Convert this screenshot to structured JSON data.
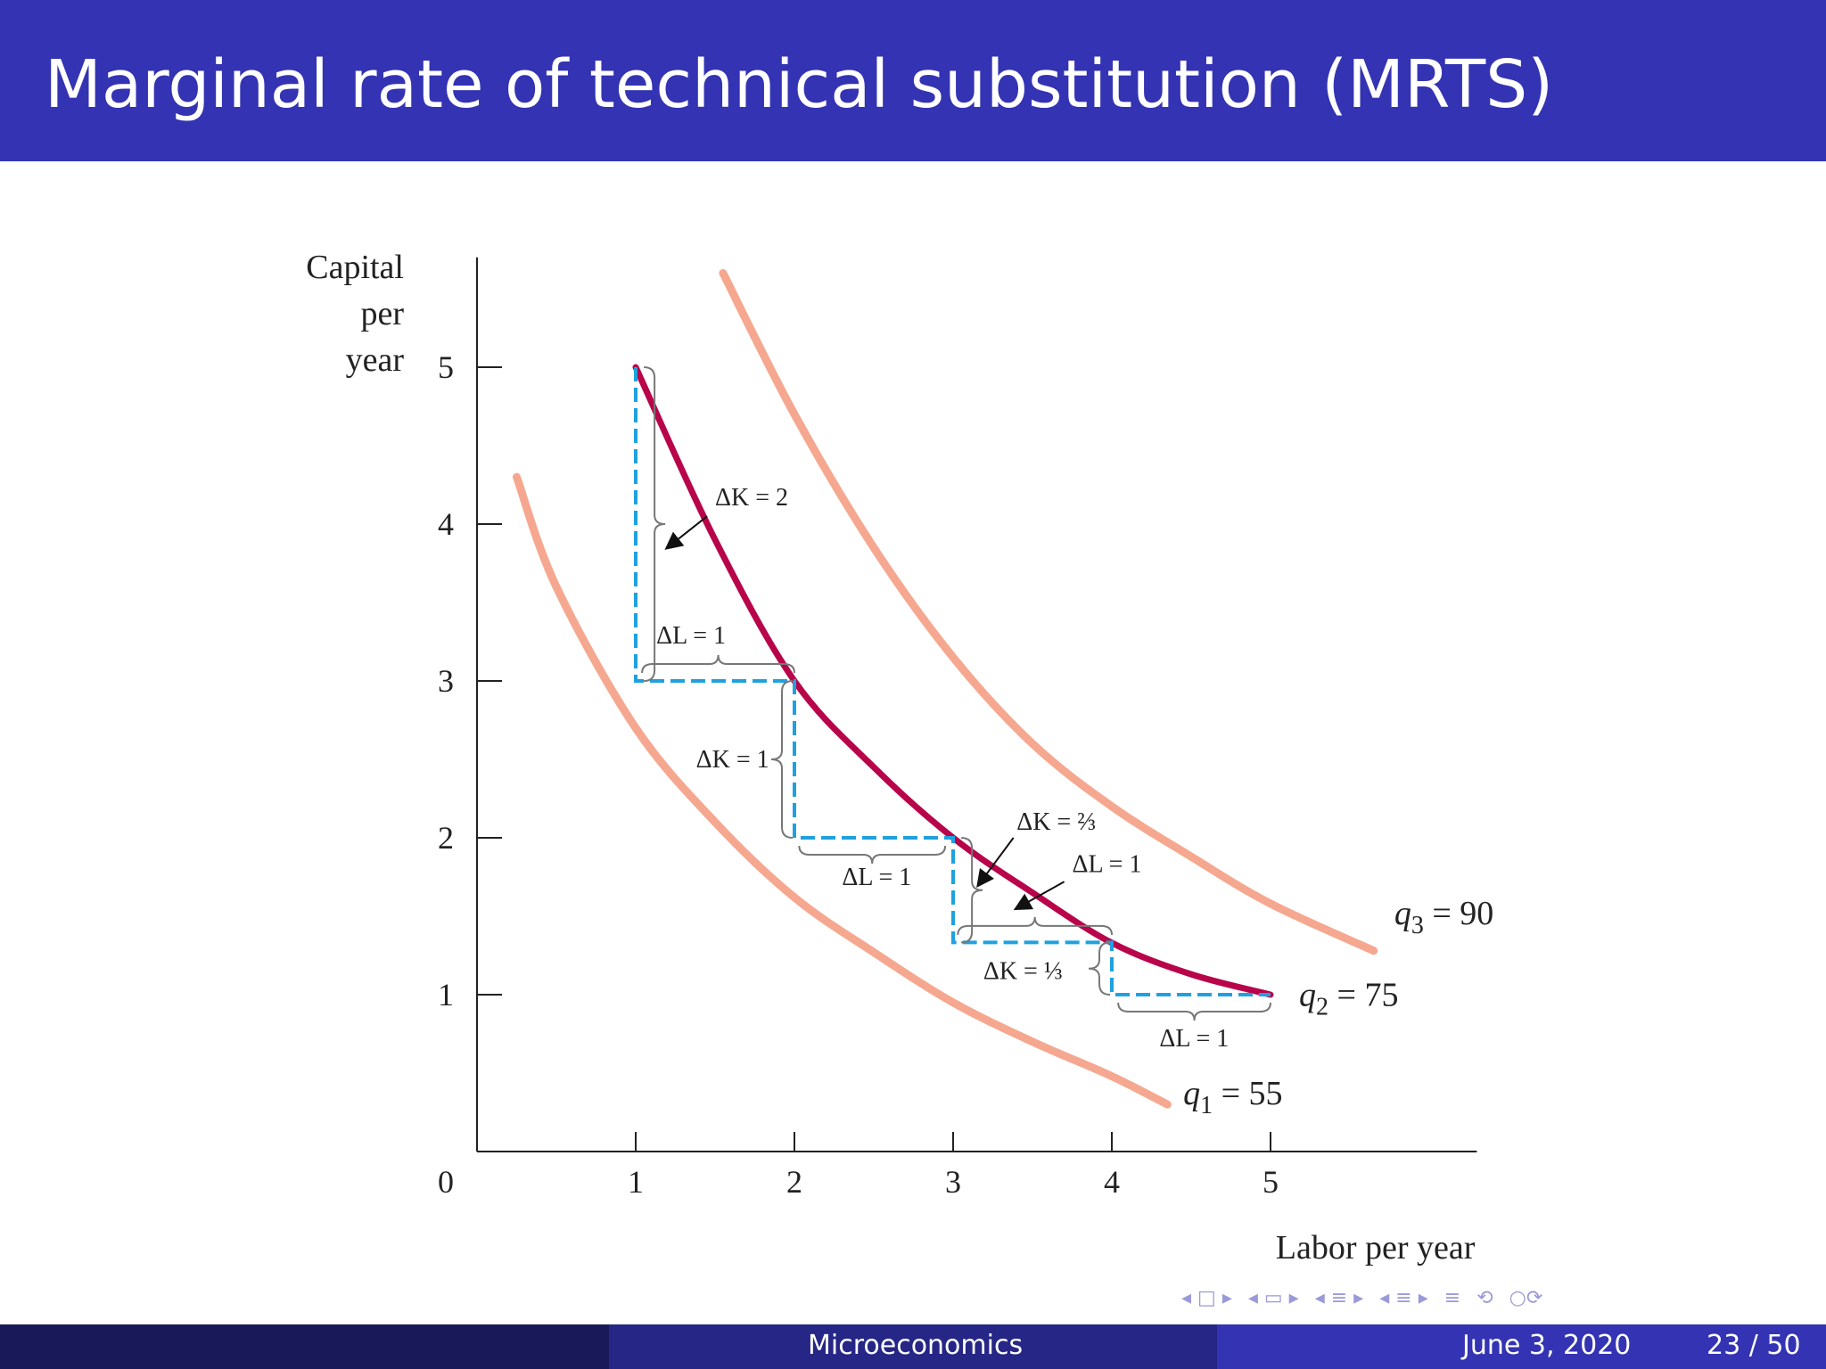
{
  "slide": {
    "title": "Marginal rate of technical substitution (MRTS)"
  },
  "footer": {
    "course": "Microeconomics",
    "date": "June 3, 2020",
    "page": "23 / 50"
  },
  "colors": {
    "title_bar": "#3333b3",
    "footer_dark": "#191959",
    "footer_mid": "#262686",
    "q2_curve": "#b8044a",
    "q1_q3_curves": "#f5a88f",
    "steps": "#1fa1e0"
  },
  "nav_icons": [
    "arrow-left-icon",
    "frame-icon",
    "arrow-right-icon",
    "subsection-icon",
    "section-icon",
    "align-icon",
    "search-icon",
    "undo-icon"
  ],
  "chart_data": {
    "type": "line",
    "title": "",
    "xlabel": "Labor per year",
    "ylabel": [
      "Capital",
      "per",
      "year"
    ],
    "xlim": [
      0,
      6.3
    ],
    "ylim": [
      0,
      5.7
    ],
    "origin_label": "0",
    "xticks": [
      1,
      2,
      3,
      4,
      5
    ],
    "yticks": [
      1,
      2,
      3,
      4,
      5
    ],
    "series": [
      {
        "id": "q1",
        "name": "q1 = 55",
        "label_main": "q",
        "label_sub": "1",
        "label_rest": " = 55",
        "points": [
          [
            0.25,
            4.3
          ],
          [
            0.5,
            3.6
          ],
          [
            1,
            2.7
          ],
          [
            1.5,
            2.1
          ],
          [
            2,
            1.62
          ],
          [
            2.5,
            1.27
          ],
          [
            3,
            0.95
          ],
          [
            3.5,
            0.7
          ],
          [
            4,
            0.48
          ],
          [
            4.35,
            0.3
          ]
        ]
      },
      {
        "id": "q2",
        "name": "q2 = 75",
        "label_main": "q",
        "label_sub": "2",
        "label_rest": " = 75",
        "points": [
          [
            1,
            5
          ],
          [
            1.5,
            3.9
          ],
          [
            2,
            3
          ],
          [
            2.5,
            2.45
          ],
          [
            3,
            2
          ],
          [
            3.5,
            1.65
          ],
          [
            4,
            1.33
          ],
          [
            4.5,
            1.13
          ],
          [
            5,
            1
          ]
        ]
      },
      {
        "id": "q3",
        "name": "q3 = 90",
        "label_main": "q",
        "label_sub": "3",
        "label_rest": " = 90",
        "points": [
          [
            1.55,
            5.6
          ],
          [
            2,
            4.7
          ],
          [
            2.5,
            3.85
          ],
          [
            3,
            3.15
          ],
          [
            3.5,
            2.6
          ],
          [
            4,
            2.2
          ],
          [
            4.5,
            1.88
          ],
          [
            5,
            1.58
          ],
          [
            5.65,
            1.28
          ]
        ]
      }
    ],
    "steps": [
      [
        1,
        5
      ],
      [
        1,
        3
      ],
      [
        2,
        3
      ],
      [
        2,
        2
      ],
      [
        3,
        2
      ],
      [
        3,
        1.333
      ],
      [
        4,
        1.333
      ],
      [
        4,
        1
      ],
      [
        5,
        1
      ]
    ],
    "annotations": [
      {
        "id": "dk-2",
        "main": "ΔK",
        "italic_part": "K",
        "text": "ΔK = 2",
        "x": 1.5,
        "y": 4.12
      },
      {
        "id": "dl-1-first",
        "text": "ΔL = 1",
        "x": 1.13,
        "y": 3.24
      },
      {
        "id": "dk-1",
        "text": "ΔK = 1",
        "x": 1.38,
        "y": 2.45
      },
      {
        "id": "dl-1-second",
        "text": "ΔL = 1",
        "x": 2.3,
        "y": 1.7
      },
      {
        "id": "dk-2-3",
        "text": "ΔK = ⅔",
        "x": 3.4,
        "y": 2.05
      },
      {
        "id": "dl-1-third",
        "text": "ΔL = 1",
        "x": 3.75,
        "y": 1.78
      },
      {
        "id": "dk-1-3",
        "text": "ΔK = ⅓",
        "x": 3.19,
        "y": 1.1
      },
      {
        "id": "dl-1-fourth",
        "text": "ΔL = 1",
        "x": 4.3,
        "y": 0.67
      }
    ]
  }
}
